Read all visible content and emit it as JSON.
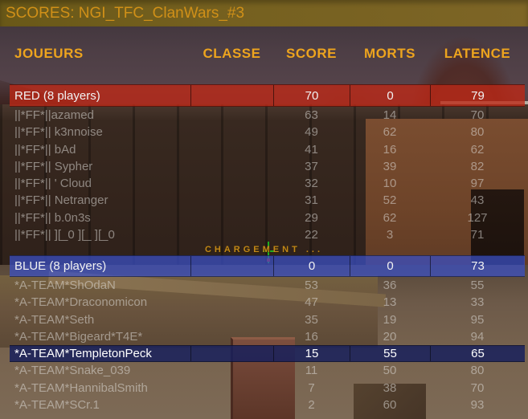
{
  "title": "SCORES: NGI_TFC_ClanWars_#3",
  "loading_text": "CHARGEMENT ...",
  "columns": {
    "players": "JOUEURS",
    "class": "CLASSE",
    "score": "SCORE",
    "deaths": "MORTS",
    "latency": "LATENCE"
  },
  "colors": {
    "title_bar": "#75601f",
    "title_text": "#d09018",
    "header_text": "#eda41e",
    "red_bar": "#aa3423",
    "blue_bar": "#4153a8",
    "highlight_row": "#202a60",
    "loading_text": "#c18618",
    "crosshair_green": "#1fae1f",
    "crosshair_red": "#c92a1a"
  },
  "teams": [
    {
      "label": "RED (8 players)",
      "score": "70",
      "deaths": "0",
      "latency": "79",
      "players": [
        {
          "name": "||*FF*||azamed",
          "score": "63",
          "deaths": "14",
          "latency": "70"
        },
        {
          "name": "||*FF*|| k3nnoise",
          "score": "49",
          "deaths": "62",
          "latency": "80"
        },
        {
          "name": "||*FF*|| bAd",
          "score": "41",
          "deaths": "16",
          "latency": "62"
        },
        {
          "name": "||*FF*|| Sypher",
          "score": "37",
          "deaths": "39",
          "latency": "82"
        },
        {
          "name": "||*FF*|| ' Cloud",
          "score": "32",
          "deaths": "10",
          "latency": "97"
        },
        {
          "name": "||*FF*|| Netranger",
          "score": "31",
          "deaths": "52",
          "latency": "43"
        },
        {
          "name": "||*FF*|| b.0n3s",
          "score": "29",
          "deaths": "62",
          "latency": "127"
        },
        {
          "name": "||*FF*|| ][_0 ][_ ][_0",
          "score": "22",
          "deaths": "3",
          "latency": "71"
        }
      ]
    },
    {
      "label": "BLUE (8 players)",
      "score": "0",
      "deaths": "0",
      "latency": "73",
      "players": [
        {
          "name": "*A-TEAM*ShOdaN",
          "score": "53",
          "deaths": "36",
          "latency": "55"
        },
        {
          "name": "*A-TEAM*Draconomicon",
          "score": "47",
          "deaths": "13",
          "latency": "33"
        },
        {
          "name": "*A-TEAM*Seth",
          "score": "35",
          "deaths": "19",
          "latency": "95"
        },
        {
          "name": "*A-TEAM*Bigeard*T4E*",
          "score": "16",
          "deaths": "20",
          "latency": "94"
        },
        {
          "name": "*A-TEAM*TempletonPeck",
          "score": "15",
          "deaths": "55",
          "latency": "65",
          "highlighted": true
        },
        {
          "name": "*A-TEAM*Snake_039",
          "score": "11",
          "deaths": "50",
          "latency": "80"
        },
        {
          "name": "*A-TEAM*HannibalSmith",
          "score": "7",
          "deaths": "38",
          "latency": "70"
        },
        {
          "name": "*A-TEAM*SCr.1",
          "score": "2",
          "deaths": "60",
          "latency": "93"
        }
      ]
    }
  ]
}
